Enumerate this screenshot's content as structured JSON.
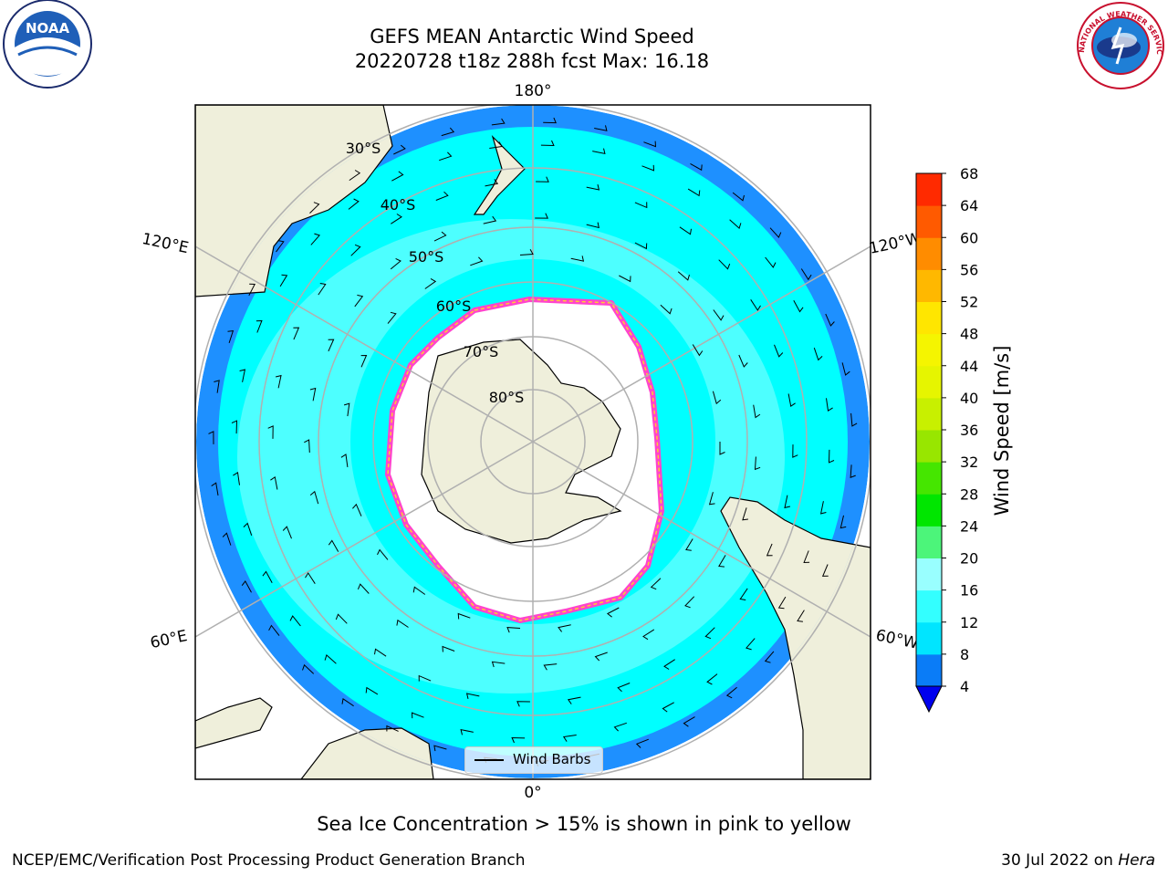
{
  "title": {
    "line1": "GEFS MEAN Antarctic Wind Speed",
    "line2": "20220728 t18z 288h fcst   Max: 16.18"
  },
  "caption": "Sea Ice Concentration > 15% is shown in pink to yellow",
  "footer": {
    "left": "NCEP/EMC/Verification Post Processing Product Generation Branch",
    "right_date": "30 Jul 2022 on ",
    "right_host": "Hera"
  },
  "map": {
    "projection": "South Polar Stereographic",
    "lon_labels": {
      "top": "180°",
      "bottom": "0°",
      "left_upper": "120°E",
      "left_lower": "60°E",
      "right_upper": "120°W",
      "right_lower": "60°W"
    },
    "lat_labels": [
      "30°S",
      "40°S",
      "50°S",
      "60°S",
      "70°S",
      "80°S"
    ],
    "legend_label": "Wind Barbs",
    "colors": {
      "ocean_bright": "#00ffff",
      "ocean_light": "#55ffff",
      "ocean_dark": "#1e90ff",
      "land": "#efefdb",
      "ice": "#ffffff",
      "ice_edge": "#ff44cc",
      "ice_inner": "#ffcc33",
      "grid": "#b0b0b0"
    }
  },
  "colorbar": {
    "label": "Wind Speed [m/s]",
    "ticks": [
      "4",
      "8",
      "12",
      "16",
      "20",
      "24",
      "28",
      "32",
      "36",
      "40",
      "44",
      "48",
      "52",
      "56",
      "60",
      "64",
      "68"
    ],
    "colors": [
      "#0a7cf7",
      "#00e5ff",
      "#33ffff",
      "#99ffff",
      "#4cf57a",
      "#00e600",
      "#45e600",
      "#98e600",
      "#c8f000",
      "#e6f500",
      "#f5f500",
      "#ffe600",
      "#ffb800",
      "#ff8c00",
      "#ff5a00",
      "#ff2a00"
    ],
    "under_color": "#0000ee"
  },
  "logos": {
    "noaa_text": "NOAA",
    "nws_text": "NATIONAL WEATHER SERVICE"
  }
}
